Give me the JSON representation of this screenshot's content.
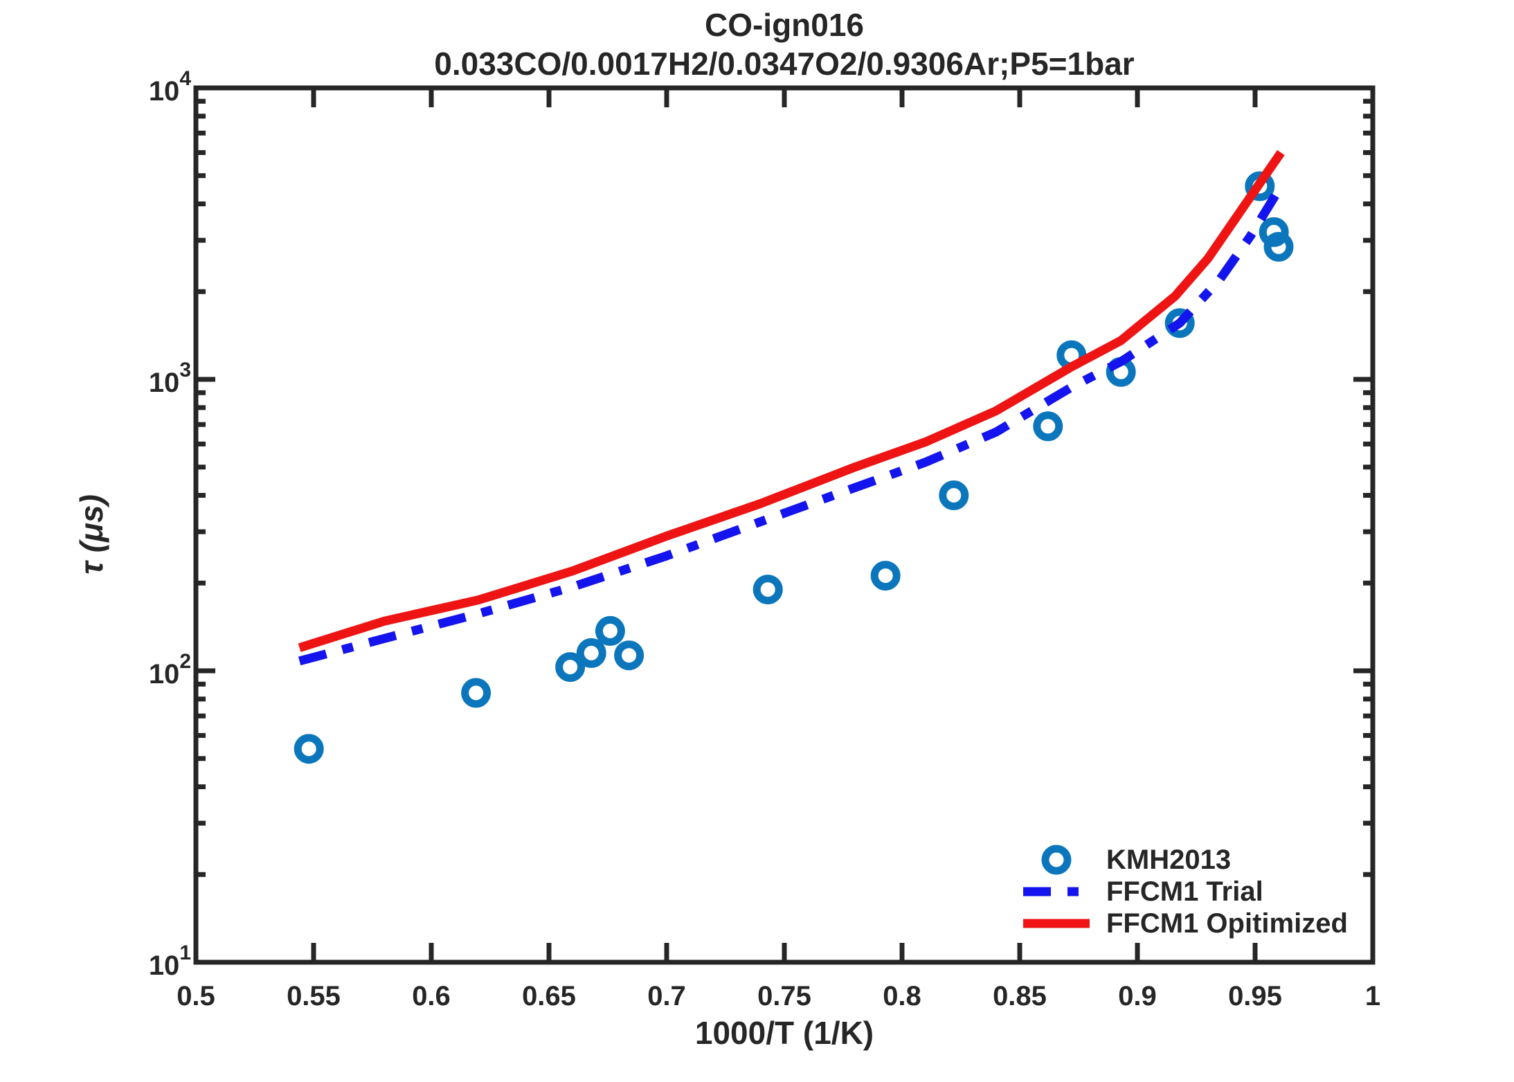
{
  "figure": {
    "background": "#ffffff",
    "frame_color": "#262626",
    "text_color": "#262626"
  },
  "chart_data": {
    "type": "scatter",
    "title": "CO-ign016",
    "subtitle": "0.033CO/0.0017H2/0.0347O2/0.9306Ar;P5=1bar",
    "xlabel": "1000/T (1/K)",
    "ylabel": "τ (μs)",
    "grid": false,
    "legend_position": "southeast",
    "x_axis": {
      "min": 0.5,
      "max": 1.0,
      "scale": "linear",
      "tick_values": [
        0.5,
        0.55,
        0.6,
        0.65,
        0.7,
        0.75,
        0.8,
        0.85,
        0.9,
        0.95,
        1
      ],
      "tick_labels": [
        "0.5",
        "0.55",
        "0.6",
        "0.65",
        "0.7",
        "0.75",
        "0.8",
        "0.85",
        "0.9",
        "0.95",
        "1"
      ]
    },
    "y_axis": {
      "min": 10,
      "max": 10000,
      "scale": "log",
      "tick_exponents": [
        1,
        2,
        3,
        4
      ],
      "tick_base": "10",
      "minor_tick_multiples": [
        2,
        3,
        4,
        5,
        6,
        7,
        8,
        9
      ]
    },
    "series": [
      {
        "name": "KMH2013",
        "type": "scatter",
        "marker": "circle",
        "color": "#0b76bc",
        "points": [
          [
            0.548,
            54
          ],
          [
            0.619,
            84
          ],
          [
            0.659,
            103
          ],
          [
            0.668,
            115
          ],
          [
            0.676,
            137
          ],
          [
            0.684,
            113
          ],
          [
            0.743,
            190
          ],
          [
            0.793,
            212
          ],
          [
            0.822,
            400
          ],
          [
            0.862,
            690
          ],
          [
            0.872,
            1210
          ],
          [
            0.893,
            1060
          ],
          [
            0.918,
            1560
          ],
          [
            0.952,
            4600
          ],
          [
            0.958,
            3200
          ],
          [
            0.96,
            2850
          ]
        ]
      },
      {
        "name": "FFCM1 Trial",
        "type": "line",
        "line_style": "dash-dot",
        "color": "#1414ee",
        "points": [
          [
            0.544,
            108
          ],
          [
            0.58,
            129
          ],
          [
            0.62,
            157
          ],
          [
            0.66,
            194
          ],
          [
            0.7,
            248
          ],
          [
            0.74,
            325
          ],
          [
            0.78,
            425
          ],
          [
            0.81,
            520
          ],
          [
            0.84,
            660
          ],
          [
            0.872,
            940
          ],
          [
            0.893,
            1150
          ],
          [
            0.918,
            1560
          ],
          [
            0.935,
            2200
          ],
          [
            0.948,
            3100
          ],
          [
            0.961,
            4600
          ]
        ]
      },
      {
        "name": "FFCM1 Opitimized",
        "type": "line",
        "line_style": "solid",
        "color": "#ee1414",
        "points": [
          [
            0.544,
            120
          ],
          [
            0.58,
            148
          ],
          [
            0.62,
            175
          ],
          [
            0.66,
            220
          ],
          [
            0.7,
            290
          ],
          [
            0.74,
            375
          ],
          [
            0.78,
            500
          ],
          [
            0.81,
            610
          ],
          [
            0.84,
            780
          ],
          [
            0.872,
            1104
          ],
          [
            0.893,
            1358
          ],
          [
            0.916,
            1930
          ],
          [
            0.93,
            2600
          ],
          [
            0.945,
            3900
          ],
          [
            0.961,
            6000
          ]
        ]
      }
    ]
  }
}
